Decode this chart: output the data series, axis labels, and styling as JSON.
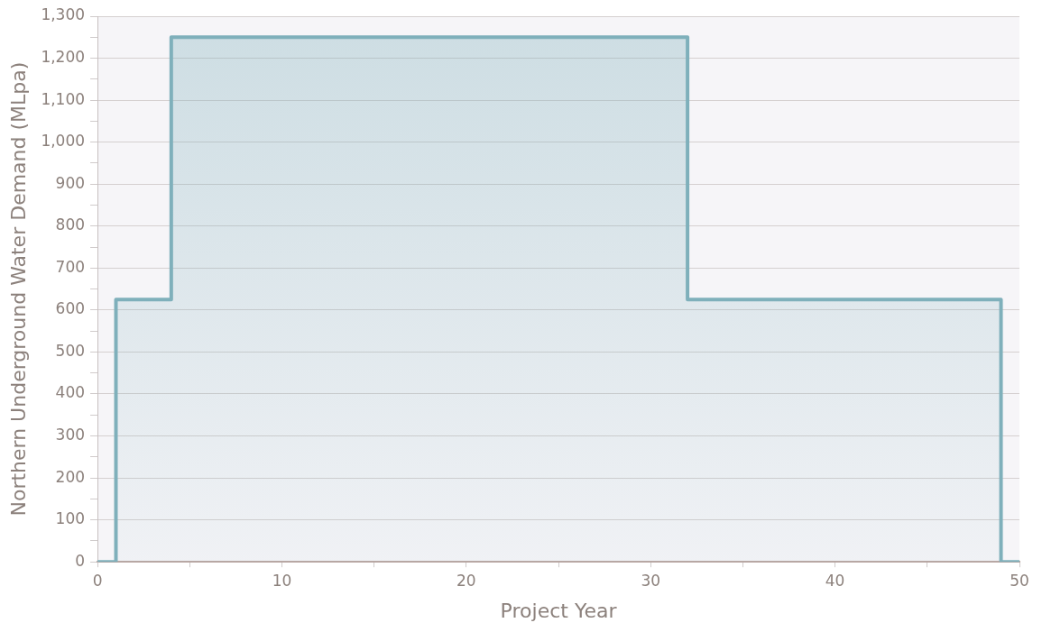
{
  "chart_data": {
    "type": "step",
    "xlabel": "Project Year",
    "ylabel": "Northern Underground Water Demand (MLpa)",
    "x": [
      0,
      1,
      4,
      32,
      49,
      50
    ],
    "series": [
      {
        "color": "#7fb0bb",
        "values": [
          0,
          625,
          1250,
          625,
          0,
          0
        ]
      }
    ],
    "xlim": [
      0,
      50
    ],
    "xticks": [
      0,
      {
        "value": 5,
        "label": null
      },
      10,
      {
        "value": 15,
        "label": null
      },
      20,
      {
        "value": 25,
        "label": null
      },
      30,
      {
        "value": 35,
        "label": null
      },
      40,
      {
        "value": 45,
        "label": null
      },
      50
    ],
    "ylim": [
      0,
      1300
    ],
    "yticks": [
      {
        "value": 0,
        "label": "0"
      },
      {
        "value": 50,
        "label": null
      },
      {
        "value": 100,
        "label": "100"
      },
      {
        "value": 150,
        "label": null
      },
      {
        "value": 200,
        "label": "200"
      },
      {
        "value": 250,
        "label": null
      },
      {
        "value": 300,
        "label": "300"
      },
      {
        "value": 350,
        "label": null
      },
      {
        "value": 400,
        "label": "400"
      },
      {
        "value": 450,
        "label": null
      },
      {
        "value": 500,
        "label": "500"
      },
      {
        "value": 550,
        "label": null
      },
      {
        "value": 600,
        "label": "600"
      },
      {
        "value": 650,
        "label": null
      },
      {
        "value": 700,
        "label": "700"
      },
      {
        "value": 750,
        "label": null
      },
      {
        "value": 800,
        "label": "800"
      },
      {
        "value": 850,
        "label": null
      },
      {
        "value": 900,
        "label": "900"
      },
      {
        "value": 950,
        "label": null
      },
      {
        "value": 1000,
        "label": "1,000"
      },
      {
        "value": 1050,
        "label": null
      },
      {
        "value": 1100,
        "label": "1,100"
      },
      {
        "value": 1150,
        "label": null
      },
      {
        "value": 1200,
        "label": "1,200"
      },
      {
        "value": 1250,
        "label": null
      },
      {
        "value": 1300,
        "label": "1,300"
      }
    ],
    "grid": "y",
    "legend": false,
    "marker": "none",
    "line_style": "solid"
  }
}
